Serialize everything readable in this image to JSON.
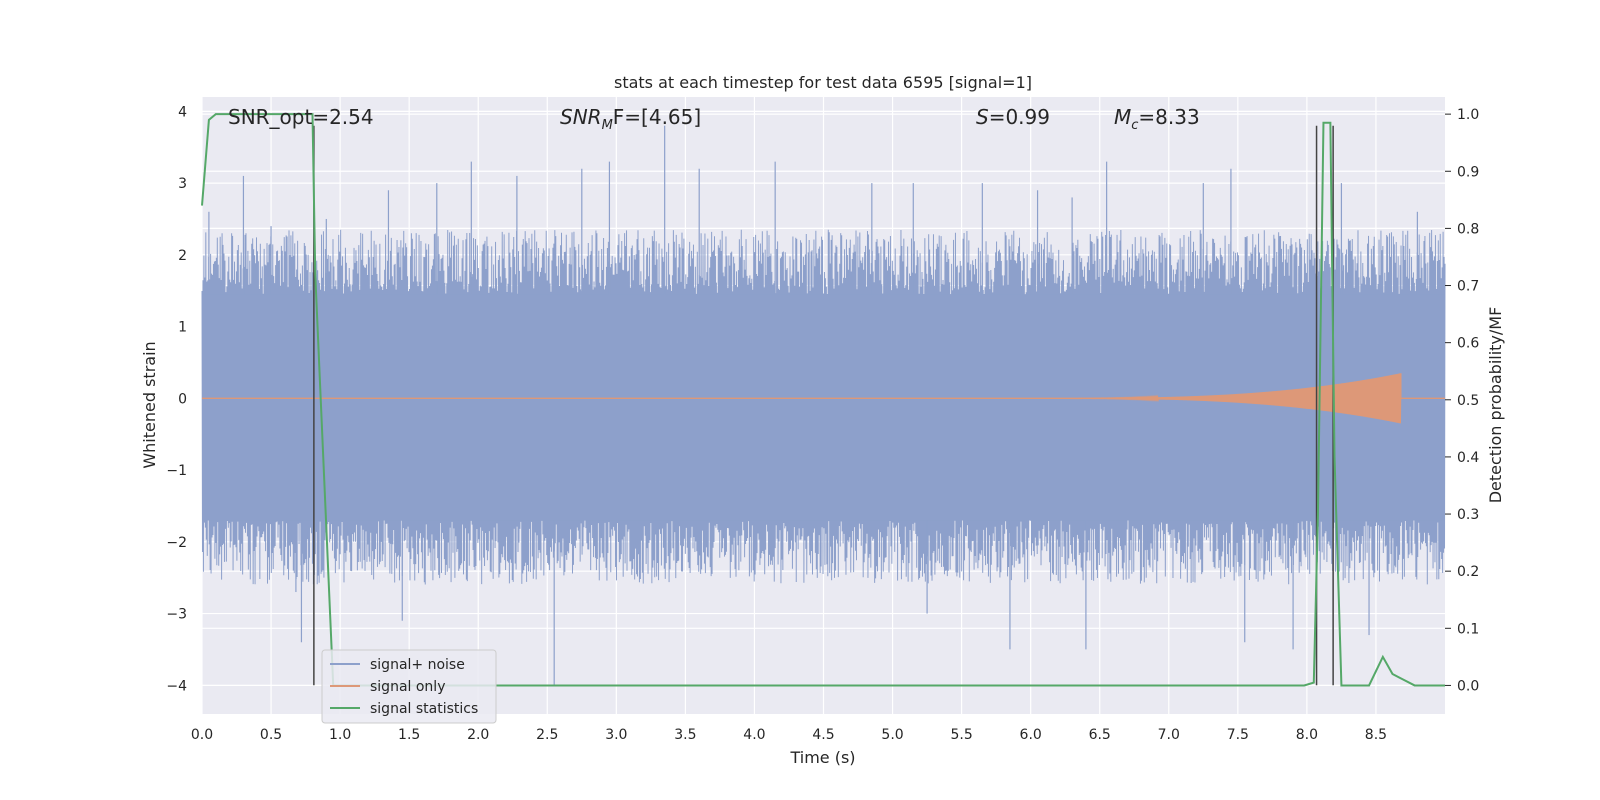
{
  "chart_data": {
    "type": "line",
    "title": "stats at each timestep for test data 6595 [signal=1]",
    "xlabel": "Time (s)",
    "ylabel_left": "Whitened strain",
    "ylabel_right": "Detection probability/MF",
    "xlim": [
      0.0,
      9.0
    ],
    "ylim_left": [
      -4.4,
      4.2
    ],
    "ylim_right": [
      -0.05,
      1.03
    ],
    "x_ticks": [
      "0.0",
      "0.5",
      "1.0",
      "1.5",
      "2.0",
      "2.5",
      "3.0",
      "3.5",
      "4.0",
      "4.5",
      "5.0",
      "5.5",
      "6.0",
      "6.5",
      "7.0",
      "7.5",
      "8.0",
      "8.5"
    ],
    "y_ticks_left": [
      "−4",
      "−3",
      "−2",
      "−1",
      "0",
      "1",
      "2",
      "3",
      "4"
    ],
    "y_ticks_right": [
      "0.0",
      "0.1",
      "0.2",
      "0.3",
      "0.4",
      "0.5",
      "0.6",
      "0.7",
      "0.8",
      "0.9",
      "1.0"
    ],
    "grid": true,
    "legend_placement": "lower-left",
    "annotations": {
      "snr_opt": "SNR_opt=2.54",
      "snr_mf_main": "SNR",
      "snr_mf_sub": "M",
      "snr_mf_rest": "F=[4.65]",
      "s_main": "S",
      "s_rest": "=0.99",
      "mc_main": "M",
      "mc_sub": "c",
      "mc_rest": "=8.33"
    },
    "series": [
      {
        "name": "signal+ noise",
        "axis": "left",
        "color": "#8da0cb",
        "description_band": {
          "lower": -1.7,
          "upper": 1.45
        },
        "peaks": [
          [
            0.05,
            2.6
          ],
          [
            0.3,
            3.1
          ],
          [
            0.5,
            2.4
          ],
          [
            0.68,
            -2.7
          ],
          [
            0.72,
            -3.4
          ],
          [
            0.9,
            2.5
          ],
          [
            1.35,
            2.9
          ],
          [
            1.45,
            -3.1
          ],
          [
            1.7,
            3.0
          ],
          [
            1.95,
            3.3
          ],
          [
            2.28,
            3.1
          ],
          [
            2.55,
            -4.0
          ],
          [
            2.75,
            3.2
          ],
          [
            2.95,
            3.3
          ],
          [
            3.35,
            3.8
          ],
          [
            3.6,
            3.2
          ],
          [
            4.15,
            3.3
          ],
          [
            4.85,
            3.0
          ],
          [
            5.15,
            3.0
          ],
          [
            5.25,
            -3.0
          ],
          [
            5.65,
            3.0
          ],
          [
            5.85,
            -3.5
          ],
          [
            6.05,
            2.9
          ],
          [
            6.3,
            2.8
          ],
          [
            6.4,
            -3.5
          ],
          [
            6.55,
            3.3
          ],
          [
            7.25,
            3.0
          ],
          [
            7.45,
            3.2
          ],
          [
            7.55,
            -3.4
          ],
          [
            7.9,
            -3.5
          ],
          [
            8.25,
            3.0
          ],
          [
            8.45,
            -3.3
          ],
          [
            8.8,
            2.6
          ]
        ]
      },
      {
        "name": "signal only",
        "axis": "left",
        "color": "#dd9878",
        "chirp_start": 6.0,
        "chirp_end": 8.68,
        "max_amplitude": 0.35
      },
      {
        "name": "signal statistics",
        "axis": "right",
        "color": "#55a868",
        "x": [
          0.0,
          0.05,
          0.1,
          0.15,
          0.78,
          0.8,
          0.82,
          0.95,
          1.0,
          6.0,
          6.1,
          7.98,
          8.05,
          8.08,
          8.12,
          8.17,
          8.2,
          8.25,
          8.3,
          8.38,
          8.45,
          8.55,
          8.62,
          8.7,
          8.78,
          9.0
        ],
        "y": [
          0.84,
          0.99,
          1.0,
          1.0,
          1.0,
          1.0,
          0.72,
          0.0,
          0.0,
          0.0,
          0.0,
          0.0,
          0.005,
          0.3,
          0.985,
          0.985,
          0.4,
          0.0,
          0.0,
          0.0,
          0.0,
          0.05,
          0.02,
          0.01,
          0.0,
          0.0
        ]
      }
    ],
    "vertical_lines": [
      {
        "x": 0.81,
        "y_from": -4.0,
        "y_to": 3.8
      },
      {
        "x": 8.07,
        "y_from": -4.0,
        "y_to": 3.8
      },
      {
        "x": 8.19,
        "y_from": -4.0,
        "y_to": 3.8
      }
    ],
    "colors": {
      "plot_background": "#eaeaf2",
      "grid": "#ffffff",
      "text": "#262626",
      "vline": "#444444"
    }
  }
}
